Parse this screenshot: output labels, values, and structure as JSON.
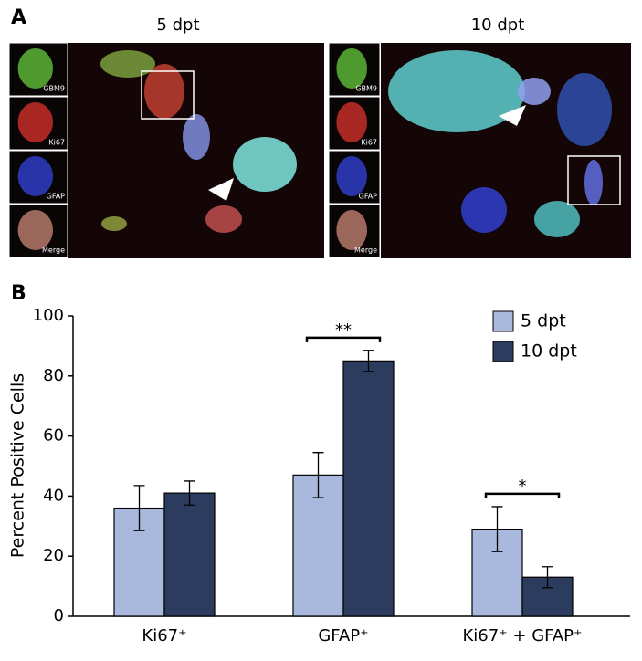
{
  "panel_a": {
    "label": "A",
    "panels": [
      {
        "title": "5 dpt",
        "channels": [
          "GBM9",
          "Ki67",
          "GFAP",
          "Merge"
        ]
      },
      {
        "title": "10 dpt",
        "channels": [
          "GBM9",
          "Ki67",
          "GFAP",
          "Merge"
        ]
      }
    ]
  },
  "panel_b": {
    "label": "B"
  },
  "chart_data": {
    "type": "bar",
    "y_label": "Percent Positive Cells",
    "categories": [
      "Ki67⁺",
      "GFAP⁺",
      "Ki67⁺ + GFAP⁺"
    ],
    "series": [
      {
        "name": "5 dpt",
        "color": "#a9b9dd",
        "values": [
          36,
          47,
          29
        ],
        "errors": [
          7.5,
          7.5,
          7.5
        ]
      },
      {
        "name": "10 dpt",
        "color": "#2c3c5e",
        "values": [
          41,
          85,
          13
        ],
        "errors": [
          4,
          3.5,
          3.5
        ]
      }
    ],
    "ylim": [
      0,
      100
    ],
    "yticks": [
      0,
      20,
      40,
      60,
      80,
      100
    ],
    "legend": "upper right",
    "annotations": [
      {
        "text": "**",
        "category": "GFAP⁺"
      },
      {
        "text": "*",
        "category": "Ki67⁺ + GFAP⁺"
      }
    ]
  }
}
